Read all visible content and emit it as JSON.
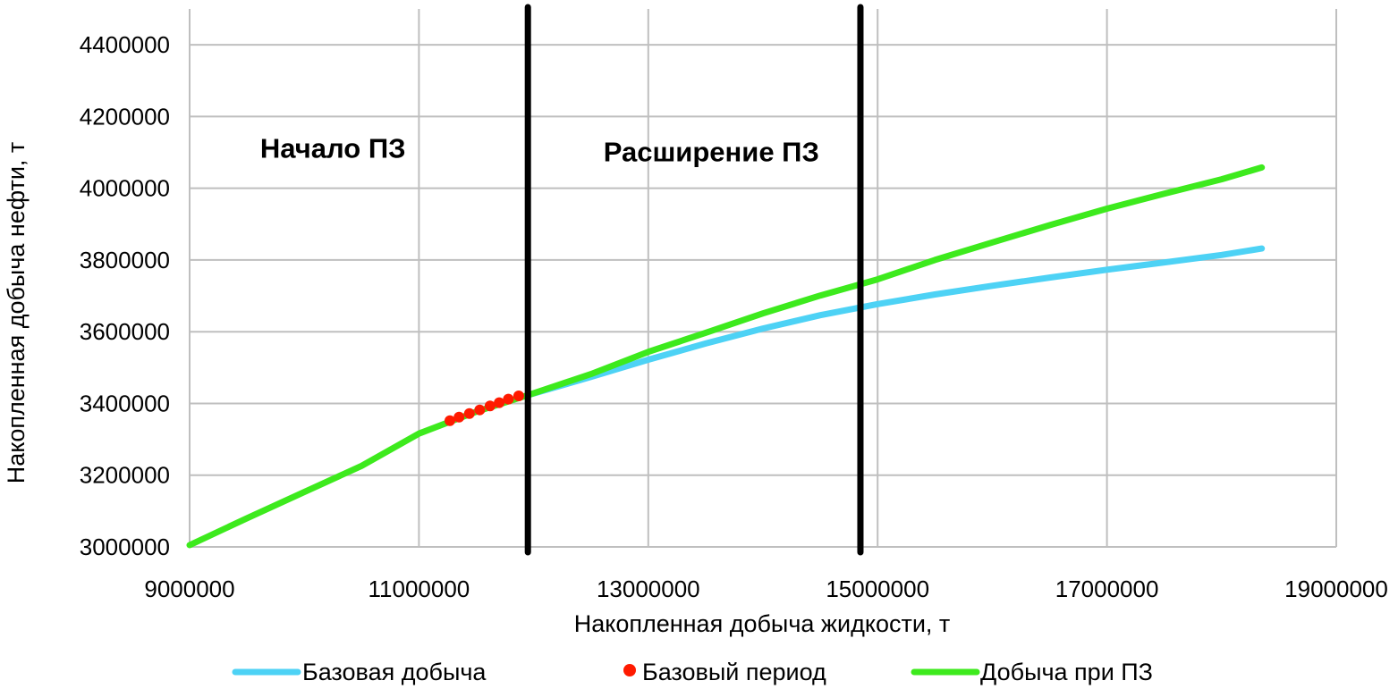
{
  "chart_data": {
    "type": "line",
    "title": "",
    "xlabel": "Накопленная добыча жидкости, т",
    "ylabel": "Накопленная добыча нефти, т",
    "xlim": [
      9000000,
      19000000
    ],
    "ylim": [
      3000000,
      4500000
    ],
    "x_ticks": [
      9000000,
      11000000,
      13000000,
      15000000,
      17000000,
      19000000
    ],
    "y_ticks": [
      3000000,
      3200000,
      3400000,
      3600000,
      3800000,
      4000000,
      4200000,
      4400000
    ],
    "x_tick_labels": [
      "9000000",
      "11000000",
      "13000000",
      "15000000",
      "17000000",
      "19000000"
    ],
    "y_tick_labels": [
      "3000000",
      "3200000",
      "3400000",
      "3600000",
      "3800000",
      "4000000",
      "4200000",
      "4400000"
    ],
    "grid": true,
    "legend_position": "bottom",
    "vertical_lines": [
      11950000,
      14850000
    ],
    "annotations": [
      {
        "text": "Начало ПЗ",
        "x": 10250000,
        "y": 4085000
      },
      {
        "text": "Расширение ПЗ",
        "x": 13550000,
        "y": 4075000
      }
    ],
    "series": [
      {
        "name": "Базовая добыча",
        "kind": "line",
        "color": "#4dd2f5",
        "points": [
          [
            11950000,
            3423000
          ],
          [
            12500000,
            3474000
          ],
          [
            13000000,
            3522000
          ],
          [
            13500000,
            3567000
          ],
          [
            14000000,
            3609000
          ],
          [
            14500000,
            3646000
          ],
          [
            15000000,
            3677000
          ],
          [
            15500000,
            3704000
          ],
          [
            16000000,
            3728000
          ],
          [
            16500000,
            3751000
          ],
          [
            17000000,
            3773000
          ],
          [
            17500000,
            3793000
          ],
          [
            18000000,
            3814000
          ],
          [
            18350000,
            3832000
          ]
        ]
      },
      {
        "name": "Базовый период",
        "kind": "scatter",
        "color": "#ff1a00",
        "points": [
          [
            11270000,
            3352000
          ],
          [
            11350000,
            3362000
          ],
          [
            11440000,
            3372000
          ],
          [
            11530000,
            3382000
          ],
          [
            11620000,
            3393000
          ],
          [
            11700000,
            3402000
          ],
          [
            11780000,
            3412000
          ],
          [
            11870000,
            3421000
          ]
        ]
      },
      {
        "name": "Добыча при ПЗ",
        "kind": "line",
        "color": "#3dea1d",
        "points": [
          [
            9000000,
            3005000
          ],
          [
            9500000,
            3080000
          ],
          [
            10000000,
            3153000
          ],
          [
            10500000,
            3226000
          ],
          [
            11000000,
            3316000
          ],
          [
            11500000,
            3377000
          ],
          [
            11950000,
            3423000
          ],
          [
            12500000,
            3482000
          ],
          [
            13000000,
            3544000
          ],
          [
            13500000,
            3597000
          ],
          [
            14000000,
            3651000
          ],
          [
            14500000,
            3701000
          ],
          [
            15000000,
            3746000
          ],
          [
            15500000,
            3800000
          ],
          [
            16000000,
            3849000
          ],
          [
            16500000,
            3897000
          ],
          [
            17000000,
            3943000
          ],
          [
            17500000,
            3985000
          ],
          [
            18000000,
            4025000
          ],
          [
            18350000,
            4058000
          ]
        ]
      }
    ]
  }
}
